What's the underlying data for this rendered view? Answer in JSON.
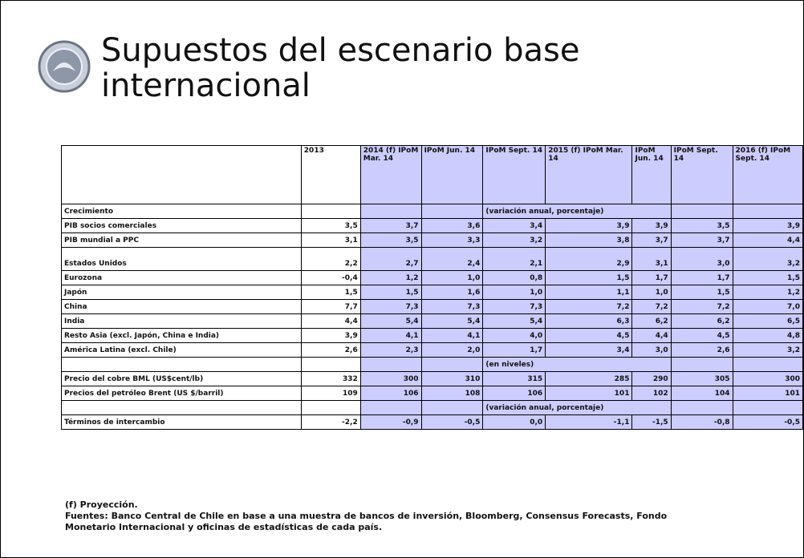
{
  "title": "Supuestos del escenario base internacional",
  "table": {
    "headers": [
      "",
      "2013",
      "2014 (f) IPoM Mar. 14",
      "IPoM Jun. 14",
      "IPoM Sept. 14",
      "2015 (f) IPoM Mar. 14",
      "IPoM Jun. 14",
      "IPoM Sept. 14",
      "2016 (f) IPoM Sept. 14"
    ],
    "rows": [
      {
        "label": "Crecimiento",
        "note": "(variación anual, porcentaje)"
      },
      {
        "label": "PIB socios comerciales",
        "values": [
          "3,5",
          "3,7",
          "3,6",
          "3,4",
          "3,9",
          "3,9",
          "3,5",
          "3,9"
        ]
      },
      {
        "label": "PIB mundial a PPC",
        "values": [
          "3,1",
          "3,5",
          "3,3",
          "3,2",
          "3,8",
          "3,7",
          "3,7",
          "4,4"
        ]
      },
      {
        "label": "Estados Unidos",
        "values": [
          "2,2",
          "2,7",
          "2,4",
          "2,1",
          "2,9",
          "3,1",
          "3,0",
          "3,2"
        ]
      },
      {
        "label": "Eurozona",
        "values": [
          "-0,4",
          "1,2",
          "1,0",
          "0,8",
          "1,5",
          "1,7",
          "1,7",
          "1,5"
        ]
      },
      {
        "label": "Japón",
        "values": [
          "1,5",
          "1,5",
          "1,6",
          "1,0",
          "1,1",
          "1,0",
          "1,5",
          "1,2"
        ]
      },
      {
        "label": "China",
        "values": [
          "7,7",
          "7,3",
          "7,3",
          "7,3",
          "7,2",
          "7,2",
          "7,2",
          "7,0"
        ]
      },
      {
        "label": "India",
        "values": [
          "4,4",
          "5,4",
          "5,4",
          "5,4",
          "6,3",
          "6,2",
          "6,2",
          "6,5"
        ]
      },
      {
        "label": "Resto Asia (excl. Japón, China e India)",
        "values": [
          "3,9",
          "4,1",
          "4,1",
          "4,0",
          "4,5",
          "4,4",
          "4,5",
          "4,8"
        ]
      },
      {
        "label": "América Latina (excl. Chile)",
        "values": [
          "2,6",
          "2,3",
          "2,0",
          "1,7",
          "3,4",
          "3,0",
          "2,6",
          "3,2"
        ]
      },
      {
        "note": "(en niveles)"
      },
      {
        "label": "Precio del cobre BML (US$cent/lb)",
        "values": [
          "332",
          "300",
          "310",
          "315",
          "285",
          "290",
          "305",
          "300"
        ]
      },
      {
        "label": "Precios del petróleo Brent (US $/barril)",
        "values": [
          "109",
          "106",
          "108",
          "106",
          "101",
          "102",
          "104",
          "101"
        ]
      },
      {
        "note": "(variación anual, porcentaje)"
      },
      {
        "label": "Términos de intercambio",
        "values": [
          "-2,2",
          "-0,9",
          "-0,5",
          "0,0",
          "-1,1",
          "-1,5",
          "-0,8",
          "-0,5"
        ]
      }
    ]
  },
  "notes": [
    "(f) Proyección.",
    "Fuentes: Banco Central de Chile en base a una muestra de bancos de inversión, Bloomberg, Consensus Forecasts, Fondo Monetario Internacional y oficinas de estadísticas de cada país."
  ]
}
